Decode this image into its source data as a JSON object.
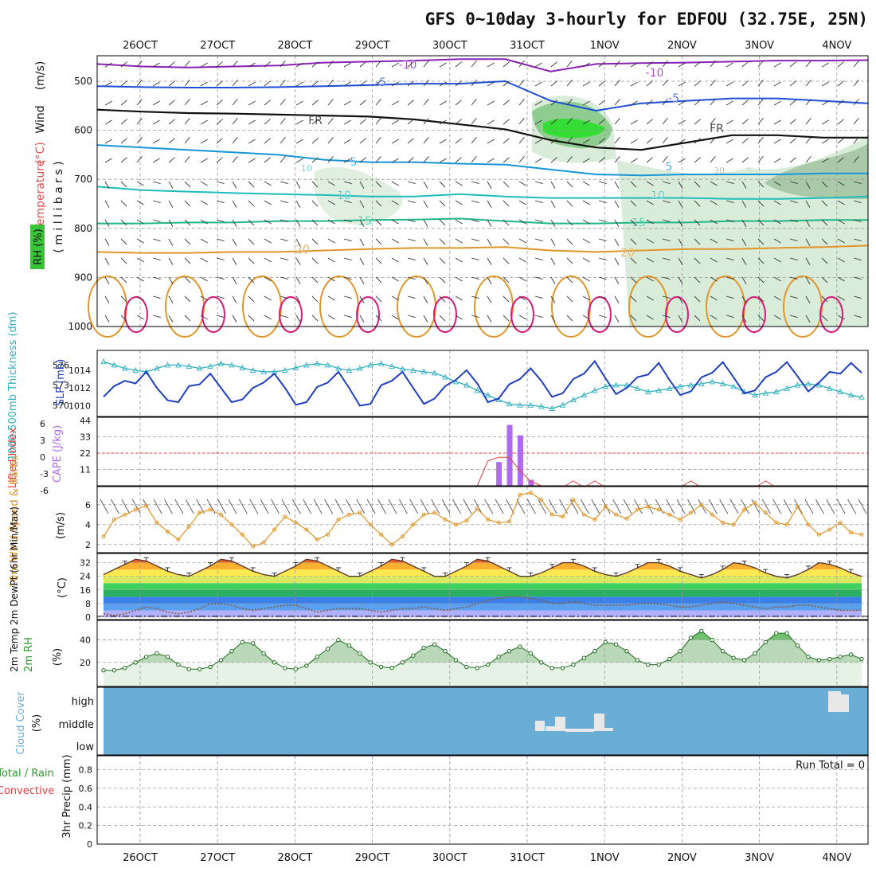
{
  "title": "GFS 0~10day 3-hourly for EDFOU (32.75E, 25N)",
  "chart_data": {
    "type": "meteogram",
    "date_labels": [
      "26OCT",
      "27OCT",
      "28OCT",
      "29OCT",
      "30OCT",
      "31OCT",
      "1NOV",
      "2NOV",
      "3NOV",
      "4NOV"
    ],
    "colors": {
      "grid": "#9a9a9a",
      "cloud": "#6aaed6",
      "rh": "#2a9a2a",
      "wind10": "#e0962a",
      "cape": "#b06af0",
      "li": "#e04040",
      "thick": "#30b0c0",
      "slp": "#2040c0"
    },
    "upper_air": {
      "ylabel_parts": [
        "Wind",
        "(m/s)",
        "Temperature",
        "(°C)",
        "RH (%)",
        "( m i l l i b a r s )"
      ],
      "pressure_ticks": [
        500,
        600,
        700,
        800,
        900,
        1000
      ],
      "isotherms": [
        {
          "label": "-10",
          "values": [
            465,
            470,
            472,
            470,
            468,
            462,
            460,
            458,
            455,
            455,
            480,
            465,
            463,
            462,
            460,
            458,
            458,
            457
          ]
        },
        {
          "label": "-5",
          "values": [
            510,
            512,
            513,
            513,
            512,
            510,
            508,
            505,
            505,
            500,
            540,
            560,
            545,
            540,
            535,
            535,
            540,
            545
          ]
        },
        {
          "label": "FR",
          "values": [
            558,
            562,
            565,
            566,
            568,
            570,
            572,
            578,
            588,
            598,
            620,
            635,
            640,
            625,
            610,
            610,
            615,
            615
          ]
        },
        {
          "label": "5",
          "values": [
            630,
            635,
            640,
            645,
            650,
            660,
            665,
            665,
            668,
            670,
            680,
            690,
            692,
            690,
            690,
            690,
            688,
            688
          ]
        },
        {
          "label": "10",
          "values": [
            715,
            722,
            725,
            728,
            730,
            732,
            735,
            735,
            730,
            735,
            738,
            738,
            738,
            738,
            740,
            740,
            738,
            735
          ]
        },
        {
          "label": "15",
          "values": [
            790,
            790,
            788,
            788,
            785,
            785,
            783,
            782,
            780,
            785,
            790,
            790,
            788,
            788,
            785,
            785,
            783,
            783
          ]
        },
        {
          "label": "20",
          "values": [
            848,
            850,
            850,
            848,
            848,
            845,
            842,
            840,
            840,
            838,
            845,
            848,
            845,
            842,
            842,
            840,
            838,
            835
          ]
        }
      ],
      "contour_labels": [
        "-10",
        "-5",
        "FR",
        "5",
        "10",
        "15",
        "20",
        "-10",
        "-5",
        "FR",
        "5",
        "10",
        "15",
        "20",
        "10",
        "30"
      ]
    },
    "thickness_slp": {
      "left_label": "1000-500mb Thickness (dm)",
      "right_label": "SLP (mb)",
      "thick_ticks": [
        570,
        573,
        576
      ],
      "slp_ticks": [
        1010,
        1012,
        1014
      ],
      "thickness": [
        576.5,
        576,
        575.5,
        575.2,
        575,
        575.5,
        576,
        576,
        575.8,
        575.5,
        575.8,
        576.2,
        576,
        575.6,
        575.2,
        575.0,
        575.0,
        575.2,
        575.6,
        576,
        576.2,
        576.0,
        575.5,
        575.2,
        575.5,
        576.0,
        576.2,
        575.8,
        575.4,
        575.2,
        575.0,
        574.8,
        574.2,
        573.5,
        573.0,
        572.2,
        571.5,
        570.8,
        570.2,
        570.0,
        570.0,
        569.8,
        569.5,
        570.0,
        570.8,
        571.5,
        572.2,
        572.8,
        573.0,
        573.0,
        572.5,
        572.0,
        572.2,
        572.5,
        572.8,
        573.0,
        573.2,
        573.5,
        573.2,
        572.8,
        572.0,
        571.5,
        571.8,
        572.0,
        572.5,
        573.0,
        573.2,
        573.0,
        572.5,
        572.0,
        571.5,
        571.2
      ],
      "slp": [
        1011,
        1012.2,
        1012.8,
        1012.5,
        1013.8,
        1012,
        1010.6,
        1010.4,
        1012.2,
        1012.4,
        1013.6,
        1012,
        1010.4,
        1010.7,
        1012,
        1012.6,
        1013.6,
        1012,
        1010.1,
        1010.4,
        1012.1,
        1012.6,
        1013.8,
        1012,
        1010,
        1010.2,
        1012.3,
        1012.8,
        1013.8,
        1012,
        1010.2,
        1010.8,
        1012.2,
        1012.9,
        1014.0,
        1012.5,
        1010.4,
        1010.8,
        1012.4,
        1013,
        1014.2,
        1012.8,
        1011,
        1011.4,
        1013,
        1013.6,
        1015,
        1013.1,
        1011.3,
        1012,
        1013.2,
        1013.5,
        1014.8,
        1012.9,
        1011.2,
        1011.6,
        1013.2,
        1013.7,
        1014.9,
        1013.2,
        1011.4,
        1011.7,
        1013.2,
        1013.8,
        1014.9,
        1013.3,
        1011.6,
        1012.6,
        1013.8,
        1013.6,
        1014.8,
        1013.7
      ]
    },
    "cape_li": {
      "left_label": "Lifted Index",
      "right_label": "CAPE (J/kg)",
      "li_ticks": [
        "6",
        "3",
        "0",
        "-3",
        "-6"
      ],
      "cape_ticks": [
        11,
        22,
        33,
        44
      ],
      "cape_bars": [
        {
          "i": 37,
          "v": 16
        },
        {
          "i": 38,
          "v": 41
        },
        {
          "i": 39,
          "v": 34
        },
        {
          "i": 40,
          "v": 4
        }
      ],
      "li_spikes": [
        {
          "i": 36,
          "v": 0.3
        },
        {
          "i": 37,
          "v": -0.5
        },
        {
          "i": 38,
          "v": -0.5
        },
        {
          "i": 39,
          "v": 2.5
        },
        {
          "i": 40,
          "v": 5
        }
      ]
    },
    "wind10": {
      "left_label": "10m Wind Speed & Barbs",
      "unit": "(m/s)",
      "ticks": [
        2,
        4,
        6
      ],
      "speed": [
        2.8,
        4.5,
        5.0,
        5.5,
        5.9,
        4.2,
        3.3,
        2.5,
        3.8,
        5.2,
        5.5,
        5.0,
        4.0,
        3.0,
        1.8,
        2.2,
        3.5,
        4.8,
        4.2,
        3.5,
        2.5,
        3.0,
        4.5,
        5.0,
        5.2,
        4.0,
        3.0,
        2.0,
        2.8,
        4.0,
        5.0,
        5.2,
        4.5,
        4.0,
        4.4,
        5.6,
        4.5,
        4.2,
        4.3,
        7.0,
        7.2,
        6.5,
        5.0,
        4.8,
        6.5,
        5.0,
        4.5,
        5.8,
        5.0,
        4.6,
        5.5,
        5.8,
        5.5,
        5.0,
        4.5,
        5.2,
        6.0,
        5.0,
        4.2,
        4.0,
        5.5,
        6.2,
        5.2,
        4.2,
        4.0,
        5.8,
        4.0,
        3.0,
        3.5,
        4.2,
        3.2,
        3.0
      ]
    },
    "temp2m": {
      "left_label": "2m Temp 2m DewPt (6hr Min/Max)",
      "unit": "(°C)",
      "ticks": [
        0,
        8,
        16,
        24,
        32
      ],
      "temp": [
        25,
        28,
        31,
        34,
        33,
        30,
        27,
        25,
        24,
        27,
        30,
        34,
        33,
        30,
        27,
        25,
        24,
        27,
        30,
        34,
        33,
        30,
        27,
        24,
        24,
        27,
        30,
        34,
        33,
        30,
        27,
        24,
        24,
        27,
        30,
        34,
        33,
        30,
        27,
        24,
        24,
        26,
        29,
        32,
        32,
        30,
        27,
        25,
        24,
        26,
        29,
        32,
        32,
        30,
        27,
        25,
        23,
        25,
        28,
        32,
        31,
        29,
        26,
        24,
        23,
        25,
        28,
        32,
        31,
        29,
        26,
        24
      ],
      "dewpt": [
        2,
        1,
        2,
        4,
        6,
        5,
        3,
        2,
        3,
        5,
        8,
        8,
        7,
        5,
        4,
        5,
        6,
        7,
        7,
        5,
        3,
        4,
        5,
        5,
        5,
        4,
        3,
        4,
        5,
        5,
        6,
        5,
        4,
        5,
        6,
        8,
        10,
        11,
        12,
        12,
        11,
        10,
        8,
        8,
        9,
        8,
        7,
        7,
        7,
        7,
        8,
        8,
        8,
        7,
        6,
        6,
        7,
        8,
        9,
        8,
        7,
        6,
        5,
        6,
        6,
        7,
        7,
        6,
        5,
        4,
        4,
        4
      ]
    },
    "rh2m": {
      "left_label": "2m RH",
      "unit": "(%)",
      "ticks": [
        20,
        40
      ],
      "rh": [
        13,
        13,
        15,
        20,
        25,
        28,
        25,
        18,
        14,
        14,
        16,
        22,
        30,
        38,
        37,
        28,
        20,
        15,
        14,
        17,
        25,
        32,
        40,
        35,
        28,
        20,
        16,
        15,
        20,
        26,
        33,
        36,
        30,
        22,
        16,
        15,
        18,
        25,
        30,
        34,
        28,
        20,
        15,
        15,
        18,
        24,
        30,
        38,
        36,
        30,
        22,
        18,
        18,
        23,
        30,
        42,
        48,
        40,
        30,
        24,
        22,
        28,
        38,
        46,
        46,
        35,
        25,
        22,
        23,
        25,
        27,
        23
      ]
    },
    "cloud": {
      "left_label": "Cloud Cover",
      "unit": "(%)",
      "levels": [
        "high",
        "middle",
        "low"
      ]
    },
    "precip": {
      "left_label": "Total / Rain Convective",
      "ylabel": "3hr Precip (mm)",
      "ticks": [
        "0",
        "0.2",
        "0.4",
        "0.6",
        "0.8"
      ],
      "run_total": "Run Total = 0"
    }
  }
}
